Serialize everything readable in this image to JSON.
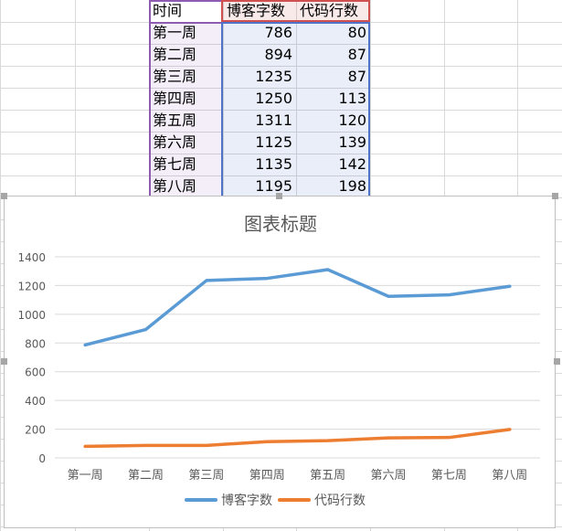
{
  "sheet": {
    "header": {
      "time": "时间",
      "blog_words": "博客字数",
      "code_lines": "代码行数"
    },
    "rows": [
      {
        "week": "第一周",
        "blog_words": "786",
        "code_lines": "80"
      },
      {
        "week": "第二周",
        "blog_words": "894",
        "code_lines": "87"
      },
      {
        "week": "第三周",
        "blog_words": "1235",
        "code_lines": "87"
      },
      {
        "week": "第四周",
        "blog_words": "1250",
        "code_lines": "113"
      },
      {
        "week": "第五周",
        "blog_words": "1311",
        "code_lines": "120"
      },
      {
        "week": "第六周",
        "blog_words": "1125",
        "code_lines": "139"
      },
      {
        "week": "第七周",
        "blog_words": "1135",
        "code_lines": "142"
      },
      {
        "week": "第八周",
        "blog_words": "1195",
        "code_lines": "198"
      }
    ]
  },
  "chart_data": {
    "type": "line",
    "title": "图表标题",
    "categories": [
      "第一周",
      "第二周",
      "第三周",
      "第四周",
      "第五周",
      "第六周",
      "第七周",
      "第八周"
    ],
    "series": [
      {
        "name": "博客字数",
        "values": [
          786,
          894,
          1235,
          1250,
          1311,
          1125,
          1135,
          1195
        ],
        "color": "#5b9bd5"
      },
      {
        "name": "代码行数",
        "values": [
          80,
          87,
          87,
          113,
          120,
          139,
          142,
          198
        ],
        "color": "#ed7d31"
      }
    ],
    "ylim": [
      0,
      1400
    ],
    "yticks": [
      "0",
      "200",
      "400",
      "600",
      "800",
      "1000",
      "1200",
      "1400"
    ],
    "grid": true,
    "legend": "bottom"
  }
}
